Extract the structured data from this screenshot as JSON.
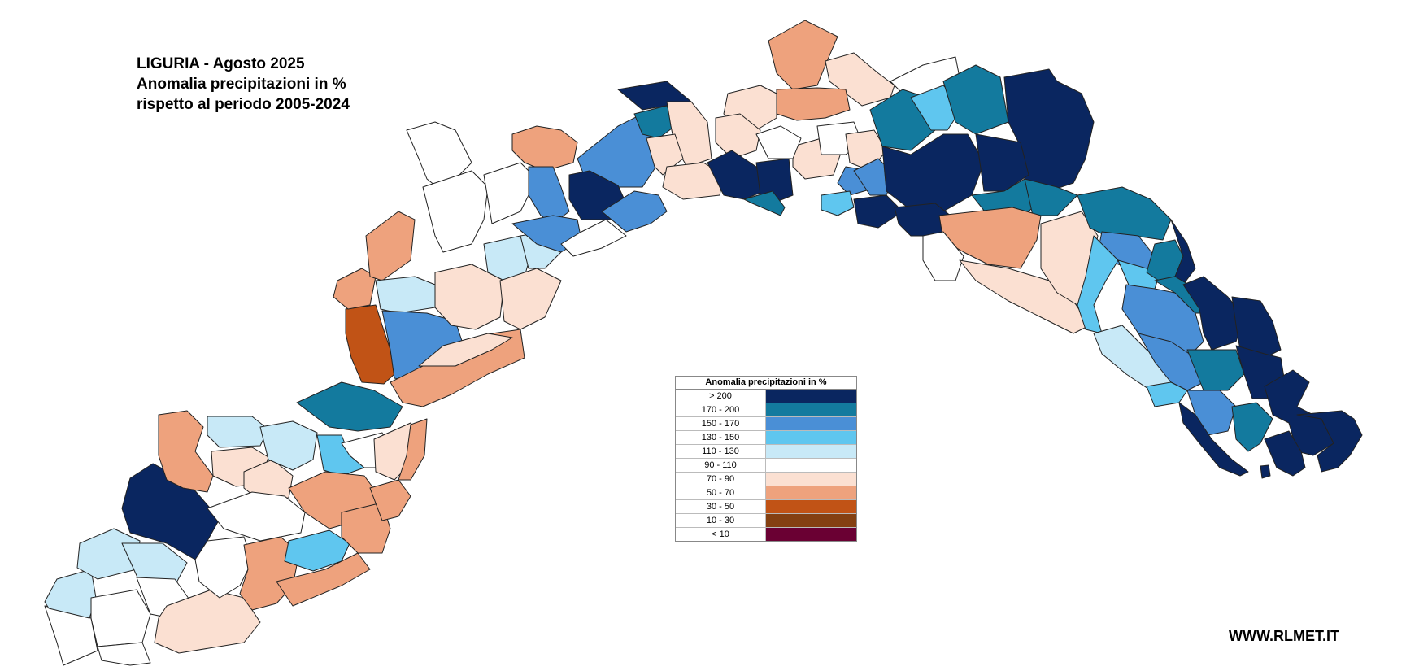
{
  "title": {
    "line1": "LIGURIA - Agosto 2025",
    "line2": "Anomalia precipitazioni in %",
    "line3": "rispetto al periodo 2005-2024"
  },
  "legend": {
    "title": "Anomalia precipitazioni in %",
    "items": [
      {
        "label": "> 200",
        "color": "#0a2660"
      },
      {
        "label": "170 - 200",
        "color": "#137a9e"
      },
      {
        "label": "150 - 170",
        "color": "#4a8fd6"
      },
      {
        "label": "130 - 150",
        "color": "#5fc6ef"
      },
      {
        "label": "110 - 130",
        "color": "#c8e9f7"
      },
      {
        "label": "90 - 110",
        "color": "#ffffff"
      },
      {
        "label": "70 - 90",
        "color": "#fbe0d2"
      },
      {
        "label": "50 - 70",
        "color": "#eea27d"
      },
      {
        "label": "30 - 50",
        "color": "#c15316"
      },
      {
        "label": "10 - 30",
        "color": "#844012"
      },
      {
        "label": "< 10",
        "color": "#6a0033"
      }
    ]
  },
  "website": "WWW.RLMET.IT"
}
